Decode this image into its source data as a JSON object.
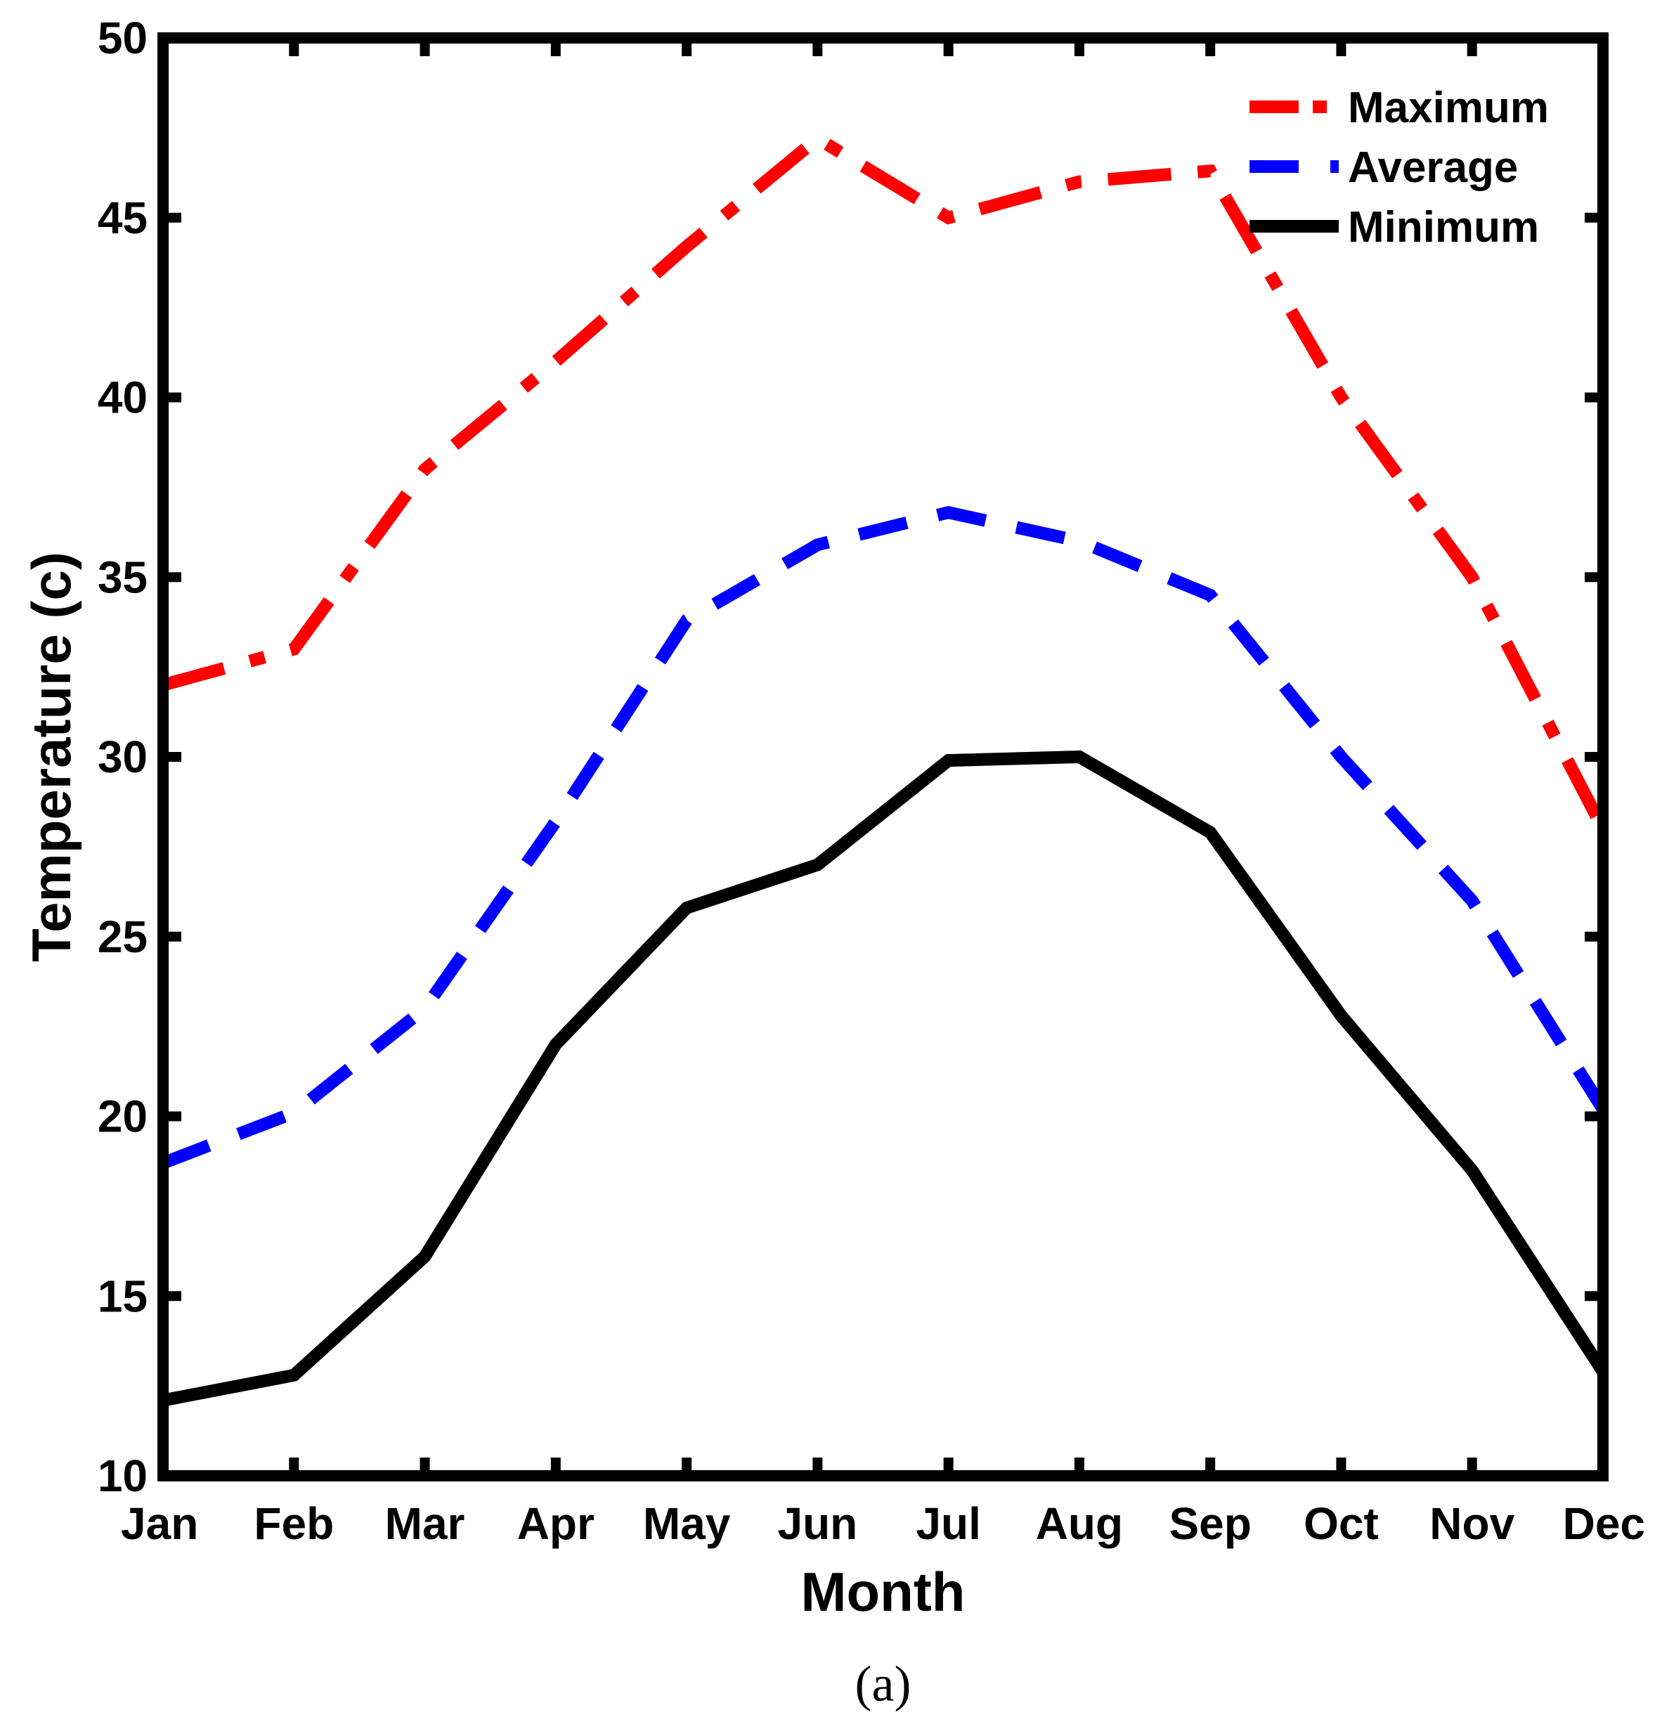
{
  "chart_data": {
    "type": "line",
    "title": "",
    "xlabel": "Month",
    "ylabel": "Temperature (c)",
    "categories": [
      "Jan",
      "Feb",
      "Mar",
      "Apr",
      "May",
      "Jun",
      "Jul",
      "Aug",
      "Sep",
      "Oct",
      "Nov",
      "Dec"
    ],
    "ylim": [
      10,
      50
    ],
    "yticks": [
      10,
      15,
      20,
      25,
      30,
      35,
      40,
      45,
      50
    ],
    "grid": false,
    "legend_position": "top-right",
    "series": [
      {
        "name": "Maximum",
        "color": "#ff0000",
        "style": "dashdot",
        "values": [
          32,
          33,
          38,
          41,
          44.2,
          47.2,
          45,
          46,
          46.3,
          40,
          35,
          28
        ]
      },
      {
        "name": "Average",
        "color": "#0000ff",
        "style": "dashed",
        "values": [
          18.7,
          20.1,
          23,
          28.2,
          33.8,
          35.9,
          36.8,
          36,
          34.5,
          30,
          26,
          20.2
        ]
      },
      {
        "name": "Minimum",
        "color": "#000000",
        "style": "solid",
        "values": [
          12.1,
          12.8,
          16.1,
          22,
          25.8,
          27,
          29.9,
          30,
          27.9,
          22.8,
          18.5,
          12.9
        ]
      }
    ],
    "caption": "(a)"
  }
}
